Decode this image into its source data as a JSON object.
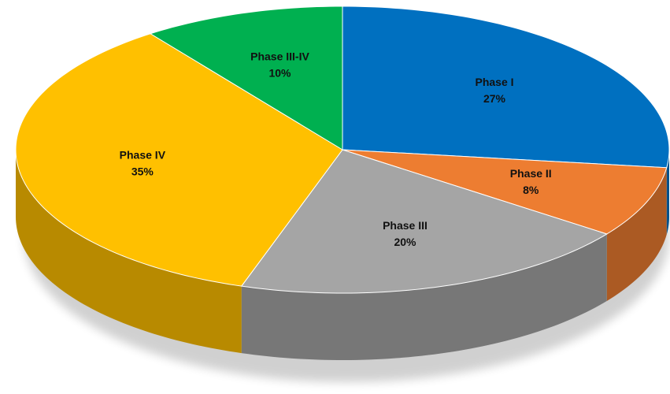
{
  "chart_data": {
    "type": "pie3d",
    "categories": [
      "Phase I",
      "Phase II",
      "Phase III",
      "Phase IV",
      "Phase III-IV"
    ],
    "values": [
      27,
      8,
      20,
      35,
      10
    ],
    "value_labels": [
      "27%",
      "8%",
      "20%",
      "35%",
      "10%"
    ],
    "colors": [
      "#0070c0",
      "#ed7d31",
      "#a5a5a5",
      "#ffc000",
      "#00b050"
    ]
  }
}
